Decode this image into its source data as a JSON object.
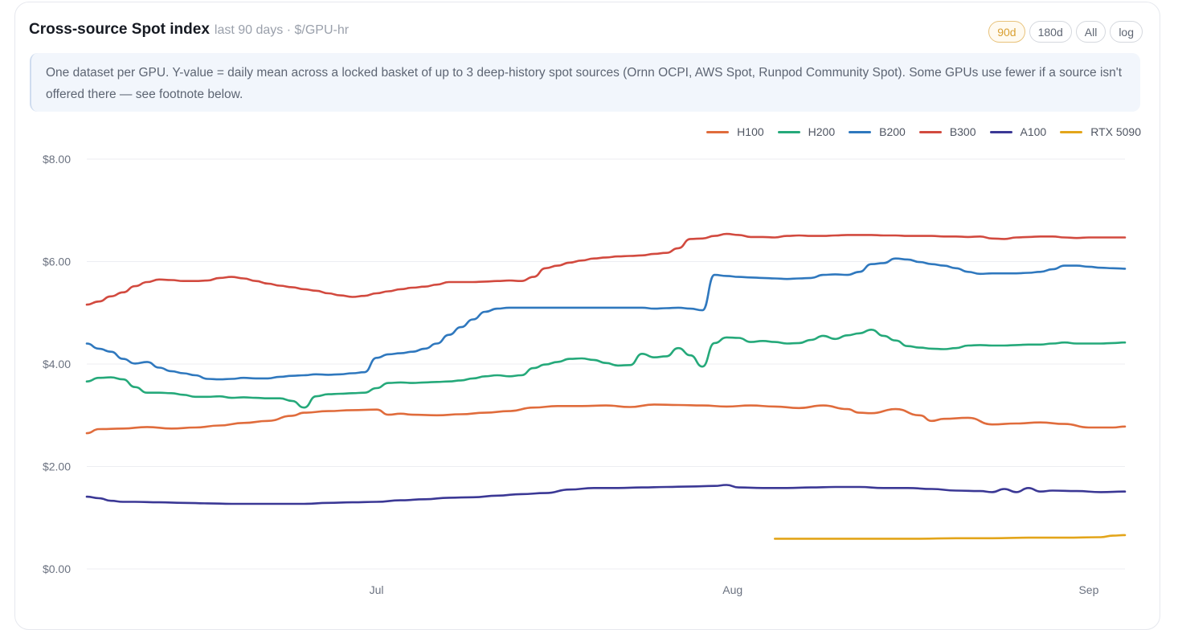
{
  "header": {
    "title": "Cross-source Spot index",
    "subtitle": "last 90 days · $/GPU-hr",
    "ranges": [
      "90d",
      "180d",
      "All",
      "log"
    ],
    "active_range": "90d"
  },
  "note": "One dataset per GPU. Y-value = daily mean across a locked basket of up to 3 deep-history spot sources (Ornn OCPI, AWS Spot, Runpod Community Spot). Some GPUs use fewer if a source isn't offered there — see footnote below.",
  "colors": {
    "accent": "#d9a033",
    "H100": "#e06c3c",
    "H200": "#25a97a",
    "B200": "#2f78be",
    "B300": "#d24a3f",
    "A100": "#3b3895",
    "RTX 5090": "#e3a51a"
  },
  "chart_data": {
    "type": "line",
    "x_unit": "day",
    "xlim": [
      0,
      86
    ],
    "ylim": [
      0,
      8
    ],
    "yticks": [
      0,
      2,
      4,
      6,
      8
    ],
    "ytick_labels": [
      "$0.00",
      "$2.00",
      "$4.00",
      "$6.00",
      "$8.00"
    ],
    "xticks": [
      {
        "x": 24,
        "label": "Jul"
      },
      {
        "x": 53.5,
        "label": "Aug"
      },
      {
        "x": 83,
        "label": "Sep"
      }
    ],
    "grid": true,
    "legend_position": "top-right",
    "series": [
      {
        "name": "H100",
        "x": [
          0,
          1,
          3,
          5,
          7,
          9,
          11,
          13,
          15,
          17,
          18,
          20,
          22,
          24,
          25,
          26,
          27,
          29,
          31,
          33,
          35,
          37,
          39,
          41,
          43,
          45,
          47,
          49,
          51,
          53,
          55,
          57,
          59,
          61,
          63,
          64,
          65,
          67,
          69,
          70,
          71,
          73,
          75,
          77,
          79,
          81,
          83,
          85,
          86
        ],
        "y": [
          2.65,
          2.73,
          2.74,
          2.77,
          2.74,
          2.76,
          2.8,
          2.85,
          2.89,
          2.99,
          3.05,
          3.08,
          3.1,
          3.11,
          3.01,
          3.03,
          3.01,
          3.0,
          3.02,
          3.05,
          3.08,
          3.15,
          3.18,
          3.18,
          3.19,
          3.16,
          3.21,
          3.2,
          3.19,
          3.17,
          3.19,
          3.17,
          3.14,
          3.19,
          3.12,
          3.05,
          3.04,
          3.12,
          3.0,
          2.89,
          2.93,
          2.95,
          2.82,
          2.84,
          2.86,
          2.83,
          2.76,
          2.76,
          2.78
        ]
      },
      {
        "name": "H200",
        "x": [
          0,
          1,
          2,
          3,
          4,
          5,
          6,
          7,
          8,
          9,
          10,
          11,
          12,
          13,
          14,
          15,
          16,
          17,
          18,
          19,
          20,
          21,
          22,
          23,
          24,
          25,
          26,
          27,
          28,
          29,
          30,
          31,
          32,
          33,
          34,
          35,
          36,
          37,
          38,
          39,
          40,
          41,
          42,
          43,
          44,
          45,
          46,
          47,
          48,
          49,
          50,
          51,
          52,
          53,
          54,
          55,
          56,
          57,
          58,
          59,
          60,
          61,
          62,
          63,
          64,
          65,
          66,
          67,
          68,
          69,
          70,
          71,
          72,
          73,
          74,
          75,
          76,
          77,
          78,
          79,
          80,
          81,
          82,
          83,
          84,
          85,
          86
        ],
        "y": [
          3.66,
          3.73,
          3.74,
          3.7,
          3.55,
          3.44,
          3.44,
          3.43,
          3.4,
          3.36,
          3.36,
          3.37,
          3.34,
          3.35,
          3.34,
          3.33,
          3.33,
          3.28,
          3.15,
          3.37,
          3.41,
          3.42,
          3.43,
          3.44,
          3.53,
          3.63,
          3.64,
          3.63,
          3.64,
          3.65,
          3.66,
          3.68,
          3.72,
          3.76,
          3.78,
          3.76,
          3.78,
          3.92,
          3.99,
          4.04,
          4.1,
          4.11,
          4.08,
          4.02,
          3.97,
          3.98,
          4.2,
          4.13,
          4.15,
          4.31,
          4.17,
          3.95,
          4.41,
          4.52,
          4.51,
          4.43,
          4.45,
          4.43,
          4.4,
          4.41,
          4.47,
          4.55,
          4.49,
          4.56,
          4.6,
          4.67,
          4.55,
          4.46,
          4.35,
          4.32,
          4.3,
          4.29,
          4.31,
          4.36,
          4.37,
          4.36,
          4.36,
          4.37,
          4.38,
          4.38,
          4.4,
          4.42,
          4.4,
          4.4,
          4.4,
          4.41,
          4.42
        ]
      },
      {
        "name": "B200",
        "x": [
          0,
          1,
          2,
          3,
          4,
          5,
          6,
          7,
          8,
          9,
          10,
          11,
          12,
          13,
          14,
          15,
          16,
          17,
          18,
          19,
          20,
          21,
          22,
          23,
          24,
          25,
          26,
          27,
          28,
          29,
          30,
          31,
          32,
          33,
          34,
          35,
          36,
          37,
          38,
          39,
          40,
          41,
          42,
          43,
          44,
          45,
          46,
          47,
          48,
          49,
          50,
          51,
          52,
          53,
          54,
          55,
          56,
          57,
          58,
          59,
          60,
          61,
          62,
          63,
          64,
          65,
          66,
          67,
          68,
          69,
          70,
          71,
          72,
          73,
          74,
          75,
          76,
          77,
          78,
          79,
          80,
          81,
          82,
          83,
          84,
          85,
          86
        ],
        "y": [
          4.4,
          4.3,
          4.24,
          4.1,
          4.01,
          4.04,
          3.93,
          3.86,
          3.82,
          3.78,
          3.71,
          3.7,
          3.71,
          3.73,
          3.72,
          3.72,
          3.75,
          3.77,
          3.78,
          3.8,
          3.79,
          3.8,
          3.82,
          3.84,
          4.12,
          4.19,
          4.21,
          4.24,
          4.3,
          4.4,
          4.57,
          4.72,
          4.87,
          5.02,
          5.08,
          5.1,
          5.1,
          5.1,
          5.1,
          5.1,
          5.1,
          5.1,
          5.1,
          5.1,
          5.1,
          5.1,
          5.1,
          5.08,
          5.09,
          5.1,
          5.08,
          5.05,
          5.74,
          5.72,
          5.7,
          5.69,
          5.68,
          5.67,
          5.66,
          5.67,
          5.68,
          5.74,
          5.75,
          5.74,
          5.8,
          5.95,
          5.97,
          6.06,
          6.04,
          5.99,
          5.95,
          5.92,
          5.87,
          5.8,
          5.76,
          5.77,
          5.77,
          5.77,
          5.78,
          5.8,
          5.85,
          5.92,
          5.92,
          5.9,
          5.88,
          5.87,
          5.86
        ]
      },
      {
        "name": "B300",
        "x": [
          0,
          1,
          2,
          3,
          4,
          5,
          6,
          7,
          8,
          9,
          10,
          11,
          12,
          13,
          14,
          15,
          16,
          17,
          18,
          19,
          20,
          21,
          22,
          23,
          24,
          25,
          26,
          27,
          28,
          29,
          30,
          31,
          32,
          33,
          34,
          35,
          36,
          37,
          38,
          39,
          40,
          41,
          42,
          43,
          44,
          45,
          46,
          47,
          48,
          49,
          50,
          51,
          52,
          53,
          54,
          55,
          56,
          57,
          58,
          59,
          60,
          61,
          62,
          63,
          64,
          65,
          66,
          67,
          68,
          69,
          70,
          71,
          72,
          73,
          74,
          75,
          76,
          77,
          78,
          79,
          80,
          81,
          82,
          83,
          84,
          85,
          86
        ],
        "y": [
          5.16,
          5.22,
          5.32,
          5.4,
          5.52,
          5.6,
          5.65,
          5.64,
          5.62,
          5.62,
          5.63,
          5.68,
          5.7,
          5.67,
          5.62,
          5.57,
          5.53,
          5.5,
          5.46,
          5.43,
          5.38,
          5.34,
          5.31,
          5.33,
          5.38,
          5.42,
          5.46,
          5.49,
          5.51,
          5.55,
          5.6,
          5.6,
          5.6,
          5.61,
          5.62,
          5.63,
          5.62,
          5.7,
          5.87,
          5.92,
          5.98,
          6.02,
          6.06,
          6.08,
          6.1,
          6.11,
          6.12,
          6.15,
          6.17,
          6.26,
          6.44,
          6.45,
          6.5,
          6.54,
          6.52,
          6.48,
          6.48,
          6.47,
          6.5,
          6.51,
          6.5,
          6.5,
          6.51,
          6.52,
          6.52,
          6.52,
          6.51,
          6.51,
          6.5,
          6.5,
          6.5,
          6.49,
          6.49,
          6.48,
          6.49,
          6.45,
          6.44,
          6.47,
          6.48,
          6.49,
          6.49,
          6.47,
          6.46,
          6.47,
          6.47,
          6.47,
          6.47
        ]
      },
      {
        "name": "A100",
        "x": [
          0,
          1,
          2,
          3,
          4,
          6,
          8,
          10,
          12,
          14,
          16,
          18,
          20,
          22,
          24,
          26,
          28,
          30,
          32,
          34,
          36,
          38,
          40,
          42,
          44,
          46,
          48,
          50,
          52,
          53,
          54,
          56,
          58,
          60,
          62,
          64,
          66,
          68,
          70,
          72,
          74,
          75,
          76,
          77,
          78,
          79,
          80,
          82,
          84,
          86
        ],
        "y": [
          1.41,
          1.38,
          1.33,
          1.31,
          1.31,
          1.3,
          1.29,
          1.28,
          1.27,
          1.27,
          1.27,
          1.27,
          1.29,
          1.3,
          1.31,
          1.34,
          1.36,
          1.39,
          1.4,
          1.43,
          1.46,
          1.48,
          1.55,
          1.58,
          1.58,
          1.59,
          1.6,
          1.61,
          1.62,
          1.64,
          1.59,
          1.58,
          1.58,
          1.59,
          1.6,
          1.6,
          1.58,
          1.58,
          1.56,
          1.53,
          1.52,
          1.5,
          1.56,
          1.5,
          1.58,
          1.51,
          1.53,
          1.52,
          1.5,
          1.51
        ]
      },
      {
        "name": "RTX 5090",
        "x": [
          57,
          60,
          63,
          66,
          69,
          72,
          75,
          78,
          81,
          84,
          85,
          86
        ],
        "y": [
          0.59,
          0.59,
          0.59,
          0.59,
          0.59,
          0.6,
          0.6,
          0.61,
          0.61,
          0.62,
          0.65,
          0.66
        ]
      }
    ]
  }
}
